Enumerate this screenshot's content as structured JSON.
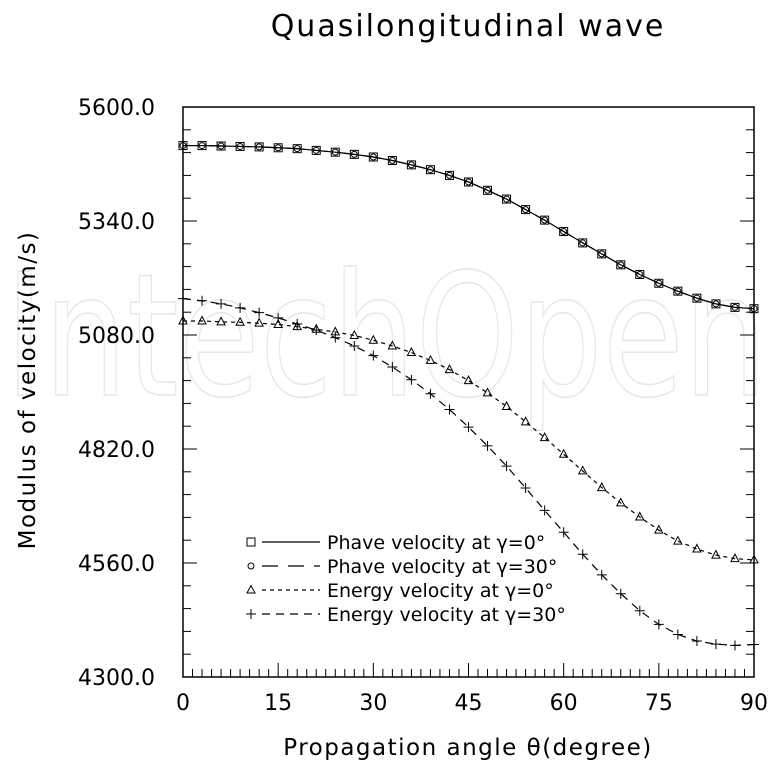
{
  "watermark": "IntechOpen",
  "chart_data": {
    "type": "line",
    "title": "Quasilongitudinal wave",
    "xlabel": "Propagation angle θ(degree)",
    "ylabel": "Modulus of velocity(m/s)",
    "xlim": [
      0,
      90
    ],
    "ylim": [
      4300,
      5600
    ],
    "xticks": [
      0,
      15,
      30,
      45,
      60,
      75,
      90
    ],
    "xtick_labels": [
      "0",
      "15",
      "30",
      "45",
      "60",
      "75",
      "90"
    ],
    "yticks": [
      4300,
      4560,
      4820,
      5080,
      5340,
      5600
    ],
    "ytick_labels": [
      "4300.0",
      "4560.0",
      "4820.0",
      "5080.0",
      "5340.0",
      "5600.0"
    ],
    "grid": false,
    "legend_position": "bottom-left",
    "x": [
      0,
      3,
      6,
      9,
      12,
      15,
      18,
      21,
      24,
      27,
      30,
      33,
      36,
      39,
      42,
      45,
      48,
      51,
      54,
      57,
      60,
      63,
      66,
      69,
      72,
      75,
      78,
      81,
      84,
      87,
      90
    ],
    "series": [
      {
        "name": "Phave velocity at γ=0°",
        "marker": "square",
        "dash": "solid",
        "values": [
          5512,
          5512,
          5511,
          5510,
          5509,
          5507,
          5505,
          5501,
          5497,
          5492,
          5486,
          5478,
          5468,
          5457,
          5444,
          5429,
          5410,
          5390,
          5366,
          5342,
          5316,
          5290,
          5265,
          5240,
          5218,
          5198,
          5180,
          5164,
          5151,
          5143,
          5140
        ]
      },
      {
        "name": "Phave velocity at γ=30°",
        "marker": "circle",
        "dash": "longdash",
        "values": [
          5512,
          5512,
          5511,
          5510,
          5509,
          5507,
          5505,
          5501,
          5497,
          5492,
          5486,
          5478,
          5468,
          5457,
          5444,
          5429,
          5410,
          5390,
          5366,
          5342,
          5316,
          5290,
          5265,
          5240,
          5218,
          5198,
          5180,
          5164,
          5151,
          5143,
          5140
        ]
      },
      {
        "name": "Energy velocity at γ=0°",
        "marker": "triangle",
        "dash": "shortdash",
        "values": [
          5112,
          5112,
          5110,
          5109,
          5107,
          5104,
          5099,
          5093,
          5087,
          5079,
          5068,
          5055,
          5040,
          5022,
          5001,
          4976,
          4948,
          4917,
          4882,
          4846,
          4808,
          4770,
          4732,
          4697,
          4665,
          4635,
          4610,
          4592,
          4578,
          4570,
          4567
        ]
      },
      {
        "name": "Energy velocity at γ=30°",
        "marker": "plus",
        "dash": "dash",
        "values": [
          5163,
          5158,
          5151,
          5142,
          5131,
          5119,
          5105,
          5091,
          5074,
          5055,
          5033,
          5007,
          4978,
          4946,
          4910,
          4870,
          4827,
          4781,
          4731,
          4680,
          4630,
          4580,
          4533,
          4490,
          4451,
          4420,
          4397,
          4382,
          4375,
          4372,
          4374
        ]
      }
    ]
  }
}
